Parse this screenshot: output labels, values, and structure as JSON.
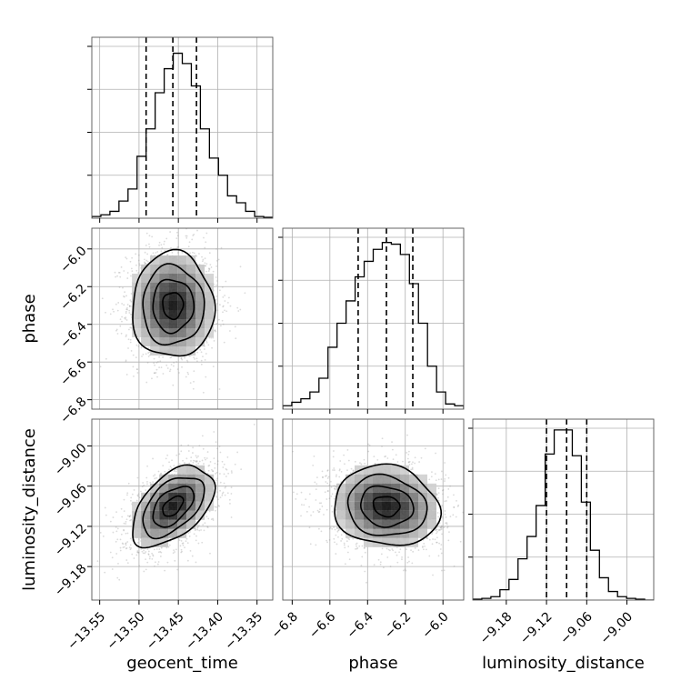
{
  "chart_data": {
    "type": "corner",
    "parameters": [
      {
        "name": "geocent_time",
        "xlabel": "geocent_time",
        "ylabel": "",
        "range": [
          -13.56,
          -13.33
        ],
        "ticks": [
          -13.55,
          -13.5,
          -13.45,
          -13.4,
          -13.35
        ],
        "tick_labels": [
          "−13.55",
          "−13.50",
          "−13.45",
          "−13.40",
          "−13.35"
        ],
        "quantiles": [
          -13.491,
          -13.457,
          -13.427
        ],
        "hist": {
          "bins": [
            -13.56,
            -13.5485,
            -13.537,
            -13.5255,
            -13.514,
            -13.5025,
            -13.491,
            -13.4795,
            -13.468,
            -13.4565,
            -13.445,
            -13.4335,
            -13.422,
            -13.4105,
            -13.399,
            -13.3875,
            -13.376,
            -13.3645,
            -13.353,
            -13.3415,
            -13.33
          ],
          "values": [
            0.01,
            0.02,
            0.04,
            0.1,
            0.17,
            0.36,
            0.52,
            0.73,
            0.87,
            0.96,
            0.9,
            0.77,
            0.52,
            0.35,
            0.25,
            0.13,
            0.09,
            0.04,
            0.01,
            0.005
          ]
        }
      },
      {
        "name": "phase",
        "xlabel": "phase",
        "ylabel": "phase",
        "range": [
          -6.85,
          -5.89
        ],
        "ticks": [
          -6.8,
          -6.6,
          -6.4,
          -6.2,
          -6.0
        ],
        "tick_labels": [
          "−6.8",
          "−6.6",
          "−6.4",
          "−6.2",
          "−6.0"
        ],
        "quantiles": [
          -6.45,
          -6.3,
          -6.16
        ],
        "hist": {
          "bins": [
            -6.85,
            -6.802,
            -6.754,
            -6.706,
            -6.658,
            -6.61,
            -6.562,
            -6.514,
            -6.466,
            -6.418,
            -6.37,
            -6.322,
            -6.274,
            -6.226,
            -6.178,
            -6.13,
            -6.082,
            -6.034,
            -5.986,
            -5.938,
            -5.89
          ],
          "values": [
            0.02,
            0.04,
            0.06,
            0.1,
            0.18,
            0.36,
            0.5,
            0.63,
            0.77,
            0.86,
            0.93,
            0.97,
            0.96,
            0.9,
            0.73,
            0.5,
            0.25,
            0.1,
            0.03,
            0.02
          ]
        }
      },
      {
        "name": "luminosity_distance",
        "xlabel": "luminosity_distance",
        "ylabel": "luminosity_distance",
        "range": [
          -9.23,
          -8.96
        ],
        "ticks": [
          -9.18,
          -9.12,
          -9.06,
          -9.0
        ],
        "tick_labels": [
          "−9.18",
          "−9.12",
          "−9.06",
          "−9.00"
        ],
        "quantiles": [
          -9.12,
          -9.09,
          -9.06
        ],
        "hist": {
          "bins": [
            -9.23,
            -9.2165,
            -9.203,
            -9.1895,
            -9.176,
            -9.1625,
            -9.149,
            -9.1355,
            -9.122,
            -9.1085,
            -9.095,
            -9.0815,
            -9.068,
            -9.0545,
            -9.041,
            -9.0275,
            -9.014,
            -9.0005,
            -8.987,
            -8.9735,
            -8.96
          ],
          "values": [
            0.005,
            0.01,
            0.02,
            0.06,
            0.12,
            0.24,
            0.37,
            0.55,
            0.85,
            0.99,
            0.99,
            0.84,
            0.57,
            0.29,
            0.13,
            0.05,
            0.02,
            0.01,
            0.005,
            0.0
          ]
        }
      }
    ],
    "pairs": [
      {
        "x_param": "geocent_time",
        "y_param": "phase",
        "mean": [
          -13.457,
          -6.3
        ],
        "sd": [
          0.026,
          0.14
        ],
        "corr": 0.0,
        "levels_sigma": [
          0.5,
          1.0,
          1.5,
          2.0
        ]
      },
      {
        "x_param": "geocent_time",
        "y_param": "luminosity_distance",
        "mean": [
          -13.457,
          -9.09
        ],
        "sd": [
          0.026,
          0.03
        ],
        "corr": 0.5,
        "levels_sigma": [
          0.5,
          1.0,
          1.5,
          2.0
        ]
      },
      {
        "x_param": "phase",
        "y_param": "luminosity_distance",
        "mean": [
          -6.3,
          -9.09
        ],
        "sd": [
          0.14,
          0.03
        ],
        "corr": -0.1,
        "levels_sigma": [
          0.5,
          1.0,
          1.5,
          2.0
        ]
      }
    ],
    "grid": true,
    "colors": {
      "line": "#000000",
      "grid": "#b0b0b0",
      "points": "#999999"
    }
  }
}
